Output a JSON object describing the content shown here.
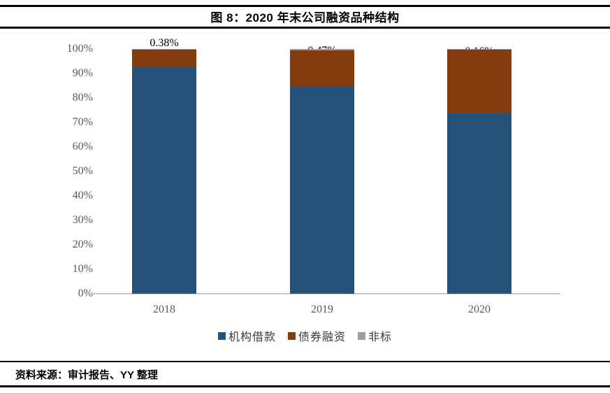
{
  "title": "图 8：2020 年末公司融资品种结构",
  "footer": {
    "source_label": "资料来源：审计报告、YY 整理"
  },
  "colors": {
    "loan_blue": "#25517a",
    "bond_brown": "#853d0d",
    "nonstd_gray": "#9e9e9e",
    "axis_text": "#595959",
    "axis_line": "#c6c6c6",
    "label_dark": "#000000",
    "label_light": "#ffffff"
  },
  "chart_data": {
    "type": "bar",
    "stacked": true,
    "title": "图 8：2020 年末公司融资品种结构",
    "categories": [
      "2018",
      "2019",
      "2020"
    ],
    "series": [
      {
        "name": "机构借款",
        "color_key": "loan_blue",
        "label_color": "light",
        "values": [
          92.69,
          84.75,
          73.78
        ]
      },
      {
        "name": "债券融资",
        "color_key": "bond_brown",
        "label_color": "light",
        "values": [
          6.93,
          14.78,
          26.06
        ]
      },
      {
        "name": "非标",
        "color_key": "nonstd_gray",
        "label_color": "dark",
        "values": [
          0.38,
          0.47,
          0.16
        ]
      }
    ],
    "value_label_format": "0.00%",
    "y_axis": {
      "min": 0,
      "max": 100,
      "ticks": [
        "100%",
        "90%",
        "80%",
        "70%",
        "60%",
        "50%",
        "40%",
        "30%",
        "20%",
        "10%",
        "0%"
      ]
    },
    "legend": [
      "机构借款",
      "债券融资",
      "非标"
    ],
    "legend_position": "bottom",
    "grid": false
  }
}
